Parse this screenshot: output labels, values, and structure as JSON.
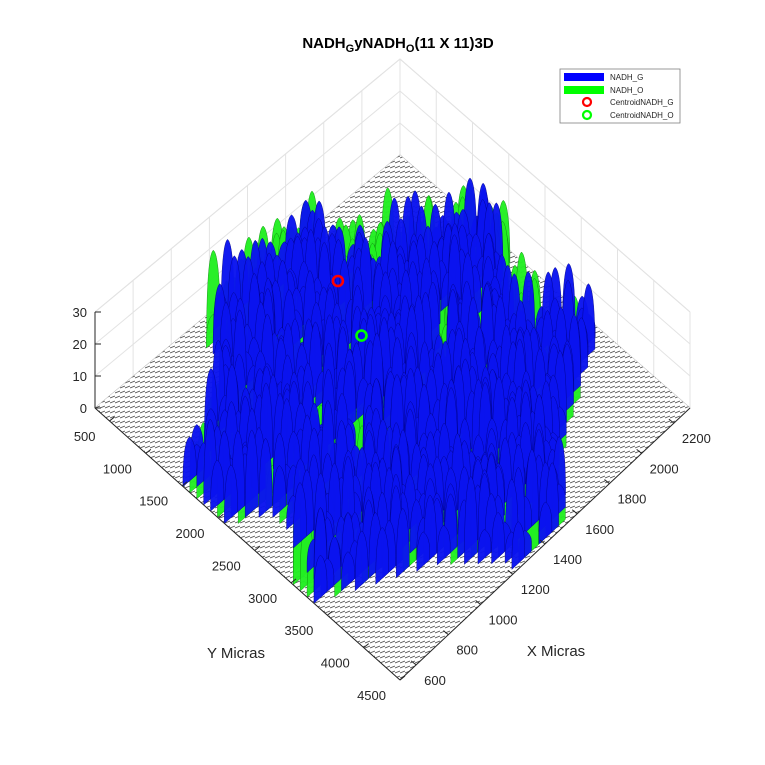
{
  "chart_data": {
    "type": "surface",
    "title": "NADH_GyNADH_O(11 X 11)3D",
    "title_parts": {
      "p1": "NADH",
      "s1": "G",
      "p2": "yNADH",
      "s2": "O",
      "p3": "(11 X 11)3D"
    },
    "xlabel": "X Micras",
    "ylabel": "Y Micras",
    "zlabel": "",
    "xlim": [
      500,
      2300
    ],
    "ylim": [
      300,
      4500
    ],
    "zlim": [
      0,
      30
    ],
    "x_ticks": [
      600,
      800,
      1000,
      1200,
      1400,
      1600,
      1800,
      2000,
      2200
    ],
    "y_ticks": [
      500,
      1000,
      1500,
      2000,
      2500,
      3000,
      3500,
      4000,
      4500
    ],
    "z_ticks": [
      0,
      10,
      20,
      30
    ],
    "grid": true,
    "legend_position": "top-right",
    "series": [
      {
        "name": "NADH_G",
        "kind": "surface",
        "color": "#0000ff"
      },
      {
        "name": "NADH_O",
        "kind": "surface",
        "color": "#00ff00"
      },
      {
        "name": "CentroidNADH_G",
        "kind": "marker",
        "color": "#ff0000",
        "x": 1390,
        "y": 1600,
        "z": 26
      },
      {
        "name": "CentroidNADH_O",
        "kind": "marker",
        "color": "#00ff00",
        "x": 1340,
        "y": 2050,
        "z": 20
      }
    ]
  }
}
